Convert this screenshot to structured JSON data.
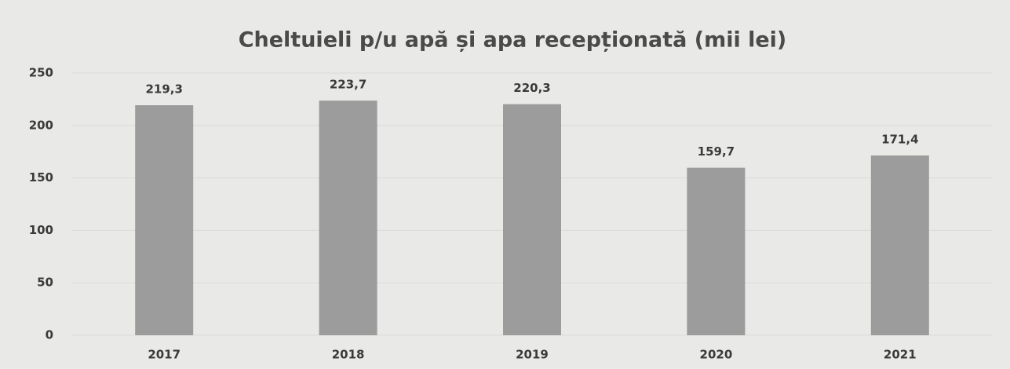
{
  "chart_data": {
    "type": "bar",
    "title": "Cheltuieli p/u apă și apa recepționată  (mii lei)",
    "categories": [
      "2017",
      "2018",
      "2019",
      "2020",
      "2021"
    ],
    "values": [
      219.3,
      223.7,
      220.3,
      159.7,
      171.4
    ],
    "value_labels": [
      "219,3",
      "223,7",
      "220,3",
      "159,7",
      "171,4"
    ],
    "color": "#9c9c9c",
    "ylim": [
      0,
      250
    ],
    "yticks": [
      0,
      50,
      100,
      150,
      200,
      250
    ],
    "grid": true
  }
}
